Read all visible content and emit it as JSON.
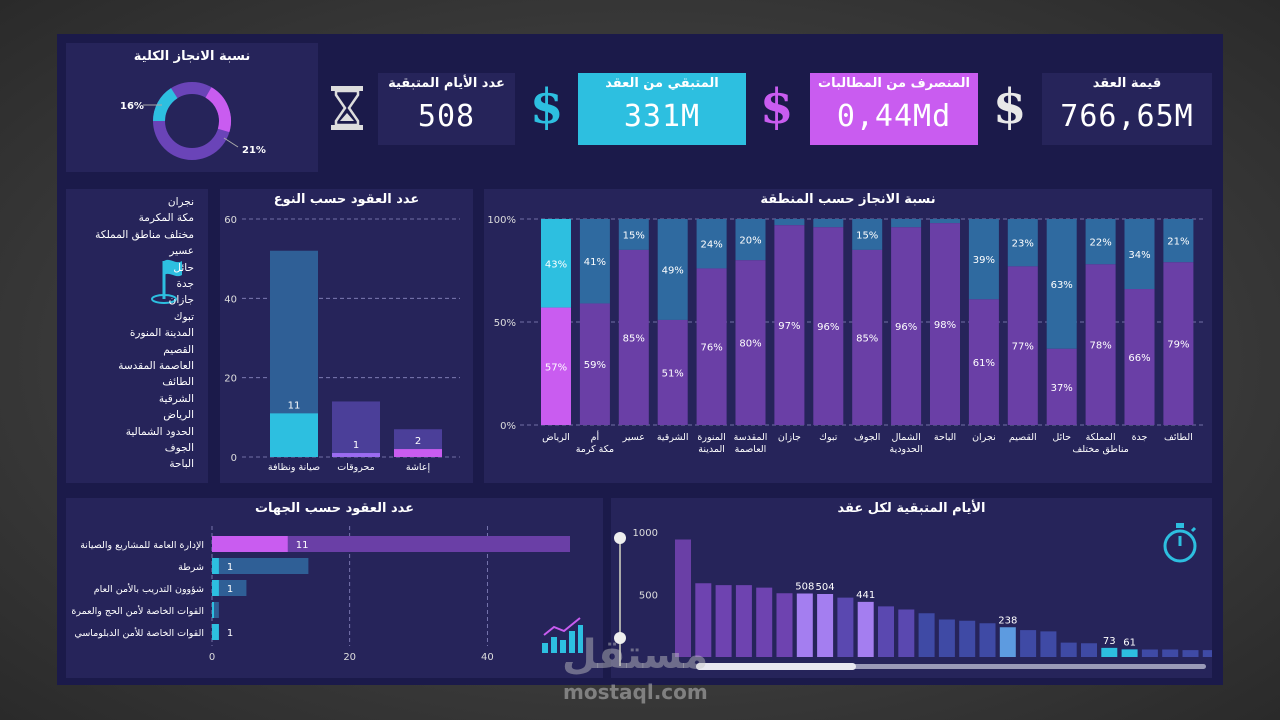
{
  "colors": {
    "bg": "#1b1a4a",
    "card": "#26245a",
    "purple": "#7a4bd0",
    "magenta": "#c95cf0",
    "cyan": "#2dbfe0",
    "teal": "#2f6aa0",
    "deep": "#4b3f99"
  },
  "donut": {
    "title": "نسبة الانجاز الكلية",
    "left_label": "16%",
    "right_label": "21%"
  },
  "kpis": {
    "days": {
      "label": "عدد الأيام المتبقية",
      "value": "508"
    },
    "remaining": {
      "label": "المتبقي من العقد",
      "value": "331M"
    },
    "spent": {
      "label": "المنصرف من المطالبات",
      "value": "0,44Md"
    },
    "contract": {
      "label": "قيمة العقد",
      "value": "766,65M"
    }
  },
  "slicer": {
    "items": [
      "نجران",
      "مكة المكرمة",
      "مختلف مناطق المملكة",
      "عسير",
      "حائل",
      "جدة",
      "جازان",
      "تبوك",
      "المدينة المنورة",
      "القصيم",
      "العاصمة المقدسة",
      "الطائف",
      "الشرقية",
      "الرياض",
      "الحدود الشمالية",
      "الجوف",
      "الباحة"
    ]
  },
  "type_chart": {
    "title": "عدد العقود حسب النوع"
  },
  "region_chart": {
    "title": "نسبة الانجاز حسب المنطقة"
  },
  "entity_chart": {
    "title": "عدد العقود حسب الجهات"
  },
  "days_chart": {
    "title": "الأيام المتبقية لكل عقد"
  },
  "watermark": {
    "arabic": "مستقل",
    "latin": "mostaql.com"
  },
  "chart_data": [
    {
      "type": "bar",
      "title": "عدد العقود حسب النوع",
      "categories": [
        "صيانة ونظافة",
        "محروقات",
        "إعاشة"
      ],
      "series": [
        {
          "name": "total",
          "values": [
            52,
            14,
            7
          ]
        },
        {
          "name": "labeled",
          "values": [
            11,
            1,
            2
          ]
        }
      ],
      "ylim": [
        0,
        60
      ],
      "yticks": [
        "0",
        "20",
        "40",
        "60"
      ]
    },
    {
      "type": "bar",
      "title": "نسبة الانجاز حسب المنطقة",
      "stacked": true,
      "categories": [
        "الرياض",
        "أم مكة كرمة",
        "عسير",
        "الشرقية",
        "المنورة المدينة",
        "المقدسة العاصمة",
        "جازان",
        "تبوك",
        "الجوف",
        "الشمال الحدودية",
        "الباحة",
        "نجران",
        "القصيم",
        "حائل",
        "المملكة مناطق مختلف",
        "جدة",
        "الطائف"
      ],
      "series": [
        {
          "name": "completed",
          "values": [
            57,
            59,
            85,
            51,
            76,
            80,
            97,
            96,
            85,
            96,
            98,
            61,
            77,
            37,
            78,
            66,
            79
          ],
          "labels": [
            "57%",
            "59%",
            "85%",
            "51%",
            "76%",
            "80%",
            "97%",
            "96%",
            "85%",
            "96%",
            "98%",
            "61%",
            "77%",
            "37%",
            "78%",
            "66%",
            "79%"
          ]
        },
        {
          "name": "remaining",
          "values": [
            43,
            41,
            15,
            49,
            24,
            20,
            3,
            4,
            15,
            4,
            2,
            39,
            23,
            63,
            22,
            34,
            21
          ],
          "labels": [
            "43%",
            "41%",
            "15%",
            "49%",
            "24%",
            "20%",
            "",
            "",
            "15%",
            "",
            "",
            "39%",
            "23%",
            "63%",
            "22%",
            "34%",
            "21%"
          ]
        }
      ],
      "ylim": [
        0,
        100
      ],
      "yticks": [
        "0%",
        "50%",
        "100%"
      ]
    },
    {
      "type": "bar",
      "orientation": "horizontal",
      "title": "عدد العقود حسب الجهات",
      "categories": [
        "الإدارة العامة للمشاريع والصيانة",
        "شرطة",
        "شؤوون التدريب بالأمن العام",
        "القوات الخاصة لأمن الحج والعمرة",
        "القوات الخاصة للأمن الدبلوماسي"
      ],
      "series": [
        {
          "name": "total",
          "values": [
            52,
            14,
            5,
            1,
            1
          ]
        },
        {
          "name": "labeled",
          "values": [
            11,
            1,
            1,
            0,
            1
          ],
          "labels": [
            "11",
            "1",
            "1",
            "",
            "1"
          ]
        }
      ],
      "xlim": [
        0,
        52
      ],
      "xticks": [
        "0",
        "20",
        "40"
      ]
    },
    {
      "type": "bar",
      "title": "الأيام المتبقية لكل عقد",
      "values": [
        940,
        590,
        575,
        575,
        555,
        510,
        508,
        504,
        475,
        441,
        405,
        380,
        350,
        300,
        290,
        270,
        238,
        215,
        205,
        115,
        110,
        73,
        61,
        60,
        60,
        55,
        55
      ],
      "labels": [
        "",
        "",
        "",
        "",
        "",
        "",
        "508",
        "504",
        "",
        "441",
        "",
        "",
        "",
        "",
        "",
        "",
        "238",
        "",
        "",
        "",
        "",
        "73",
        "61",
        "",
        "",
        "",
        ""
      ],
      "ylim": [
        0,
        1000
      ],
      "yticks": [
        "500",
        "1000"
      ]
    }
  ]
}
